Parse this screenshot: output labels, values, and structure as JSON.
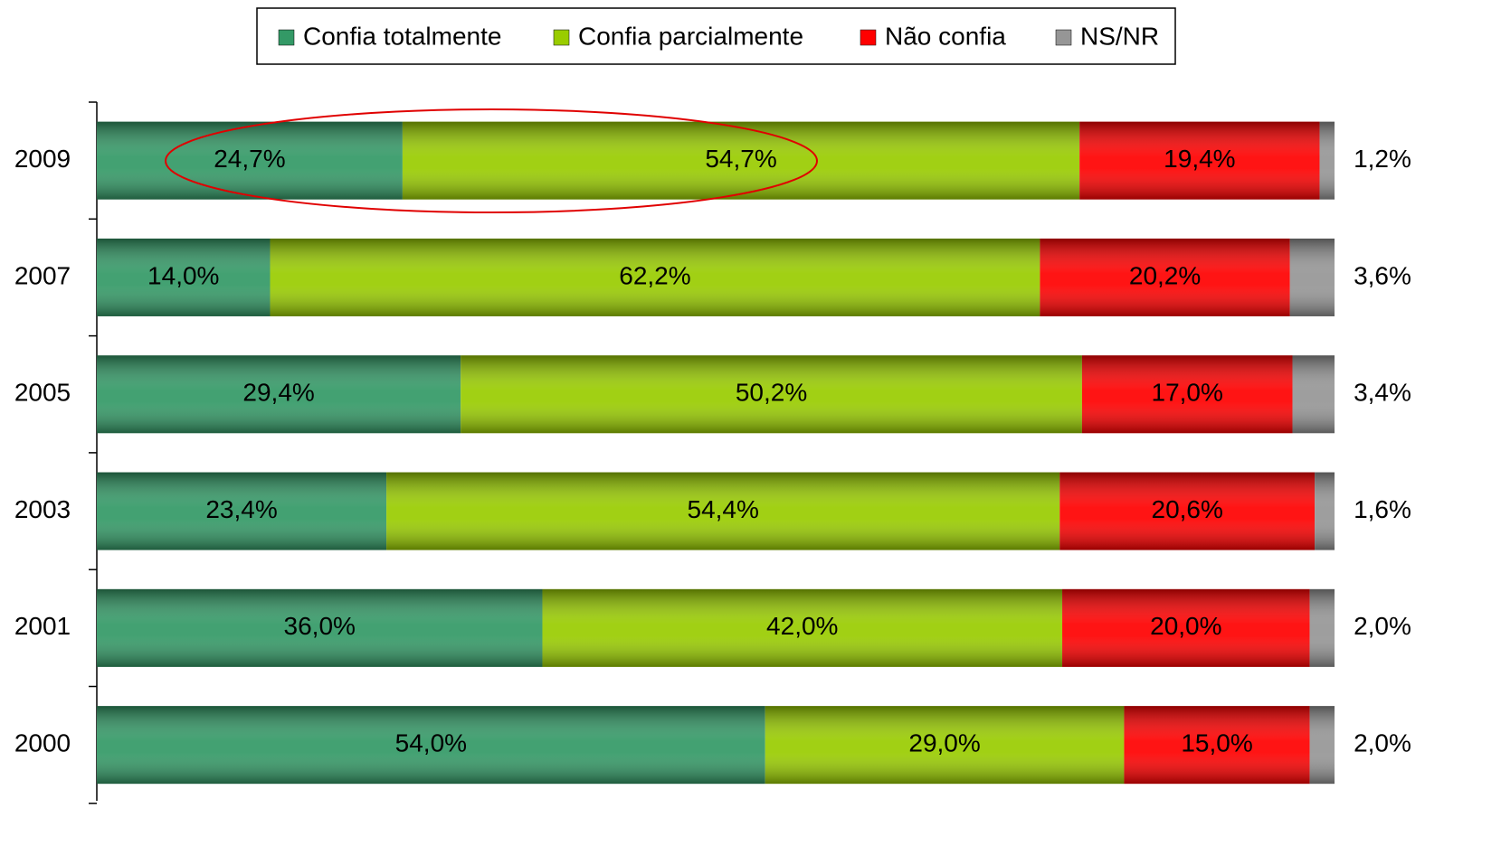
{
  "chart_data": {
    "type": "bar",
    "orientation": "horizontal",
    "stacked": true,
    "categories": [
      "2009",
      "2007",
      "2005",
      "2003",
      "2001",
      "2000"
    ],
    "xlim": [
      0,
      100
    ],
    "legend": "top",
    "series": [
      {
        "name": "Confia totalmente",
        "color": "#339966",
        "values": [
          24.7,
          14.0,
          29.4,
          23.4,
          36.0,
          54.0
        ],
        "value_labels": [
          "24,7%",
          "14,0%",
          "29,4%",
          "23,4%",
          "36,0%",
          "54,0%"
        ]
      },
      {
        "name": "Confia parcialmente",
        "color": "#99cc00",
        "values": [
          54.7,
          62.2,
          50.2,
          54.4,
          42.0,
          29.0
        ],
        "value_labels": [
          "54,7%",
          "62,2%",
          "50,2%",
          "54,4%",
          "42,0%",
          "29,0%"
        ]
      },
      {
        "name": "Não confia",
        "color": "#ff0000",
        "values": [
          19.4,
          20.2,
          17.0,
          20.6,
          20.0,
          15.0
        ],
        "value_labels": [
          "19,4%",
          "20,2%",
          "17,0%",
          "20,6%",
          "20,0%",
          "15,0%"
        ]
      },
      {
        "name": "NS/NR",
        "color": "#969696",
        "values": [
          1.2,
          3.6,
          3.4,
          1.6,
          2.0,
          2.0
        ],
        "value_labels": [
          "1,2%",
          "3,6%",
          "3,4%",
          "1,6%",
          "2,0%",
          "2,0%"
        ]
      }
    ]
  }
}
